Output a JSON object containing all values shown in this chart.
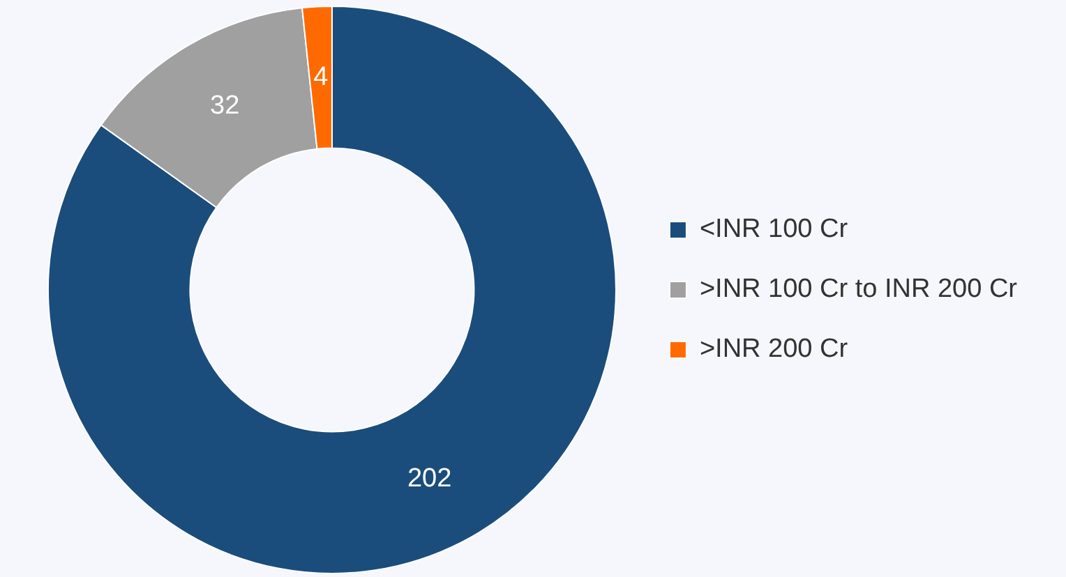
{
  "chart_data": {
    "type": "donut",
    "categories": [
      "<INR 100 Cr",
      ">INR 100 Cr to INR 200 Cr",
      ">INR 200 Cr"
    ],
    "values": [
      202,
      32,
      4
    ],
    "colors": [
      "#1a4d7c",
      "#a0a0a0",
      "#ff6a00"
    ],
    "data_labels": true,
    "legend": "right"
  }
}
